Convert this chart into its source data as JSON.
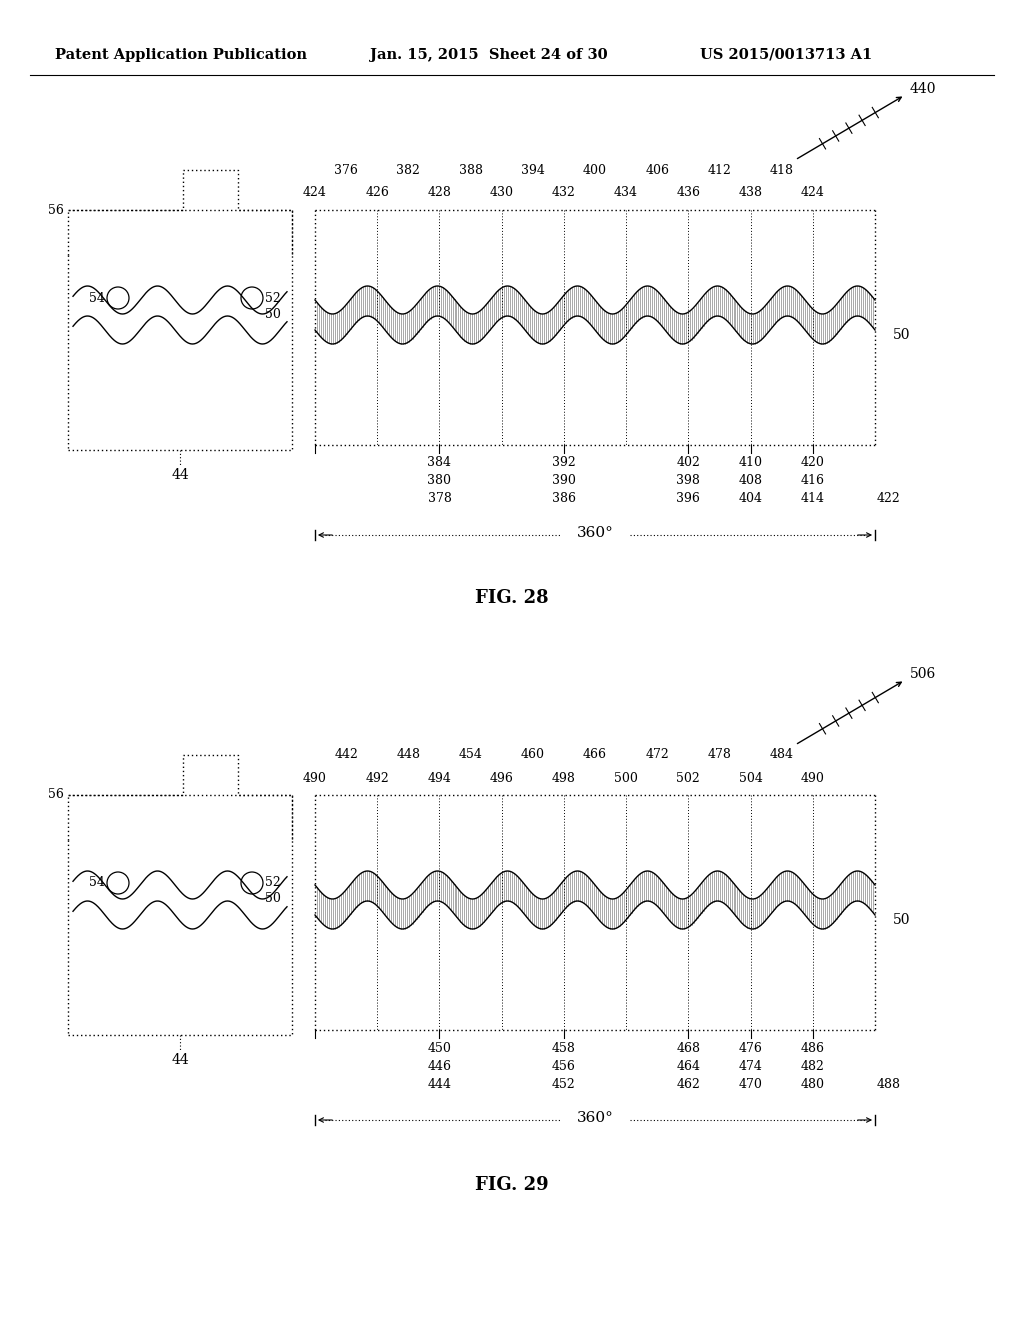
{
  "header_left": "Patent Application Publication",
  "header_mid": "Jan. 15, 2015  Sheet 24 of 30",
  "header_right": "US 2015/0013713 A1",
  "fig28_label": "FIG. 28",
  "fig29_label": "FIG. 29",
  "bg_color": "#ffffff",
  "line_color": "#000000",
  "fig28": {
    "arrow_label": "440",
    "top_labels_row1": [
      "376",
      "382",
      "388",
      "394",
      "400",
      "406",
      "412",
      "418"
    ],
    "top_labels_row2": [
      "424",
      "426",
      "428",
      "430",
      "432",
      "434",
      "436",
      "438",
      "424"
    ],
    "right_label": "50",
    "bottom_labels": [
      [
        "384",
        "380",
        "378"
      ],
      [
        "392",
        "390",
        "386"
      ],
      [
        "402",
        "398",
        "396"
      ],
      [
        "410",
        "408",
        "404"
      ],
      [
        "420",
        "416",
        "414"
      ]
    ],
    "bottom_extra": "422",
    "degree_label": "360°"
  },
  "fig29": {
    "arrow_label": "506",
    "top_labels_row1": [
      "442",
      "448",
      "454",
      "460",
      "466",
      "472",
      "478",
      "484"
    ],
    "top_labels_row2": [
      "490",
      "492",
      "494",
      "496",
      "498",
      "500",
      "502",
      "504",
      "490"
    ],
    "right_label": "50",
    "bottom_labels": [
      [
        "450",
        "446",
        "444"
      ],
      [
        "458",
        "456",
        "452"
      ],
      [
        "468",
        "464",
        "462"
      ],
      [
        "476",
        "474",
        "470"
      ],
      [
        "486",
        "482",
        "480"
      ]
    ],
    "bottom_extra": "488",
    "degree_label": "360°"
  }
}
